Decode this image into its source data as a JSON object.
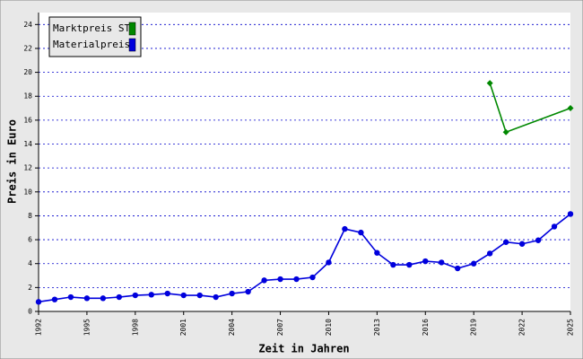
{
  "chart_data": {
    "type": "line",
    "xlabel": "Zeit in Jahren",
    "ylabel": "Preis in Euro",
    "xlim": [
      1992,
      2025
    ],
    "xticks": [
      1992,
      1995,
      1998,
      2001,
      2004,
      2007,
      2010,
      2013,
      2016,
      2019,
      2022,
      2025
    ],
    "ylim": [
      0,
      25
    ],
    "yticks": [
      0,
      2,
      4,
      6,
      8,
      10,
      12,
      14,
      16,
      18,
      20,
      22,
      24
    ],
    "grid": true,
    "legend": "upper-left",
    "series": [
      {
        "name": "Marktpreis ST",
        "color": "#008800",
        "marker": "diamond",
        "x": [
          2020,
          2021,
          2025
        ],
        "values": [
          19.1,
          15.0,
          17.0
        ]
      },
      {
        "name": "Materialpreis",
        "color": "#0000dd",
        "marker": "circle",
        "x": [
          1992,
          1993,
          1994,
          1995,
          1996,
          1997,
          1998,
          1999,
          2000,
          2001,
          2002,
          2003,
          2004,
          2005,
          2006,
          2007,
          2008,
          2009,
          2010,
          2011,
          2012,
          2013,
          2014,
          2015,
          2016,
          2017,
          2018,
          2019,
          2020,
          2021,
          2022,
          2023,
          2024,
          2025
        ],
        "values": [
          0.8,
          1.0,
          1.2,
          1.1,
          1.1,
          1.2,
          1.35,
          1.4,
          1.5,
          1.35,
          1.35,
          1.2,
          1.5,
          1.65,
          2.6,
          2.7,
          2.7,
          2.85,
          4.1,
          6.9,
          6.6,
          4.9,
          3.9,
          3.9,
          4.2,
          4.1,
          3.6,
          4.0,
          4.85,
          5.8,
          5.65,
          5.95,
          7.1,
          8.15
        ]
      }
    ]
  }
}
